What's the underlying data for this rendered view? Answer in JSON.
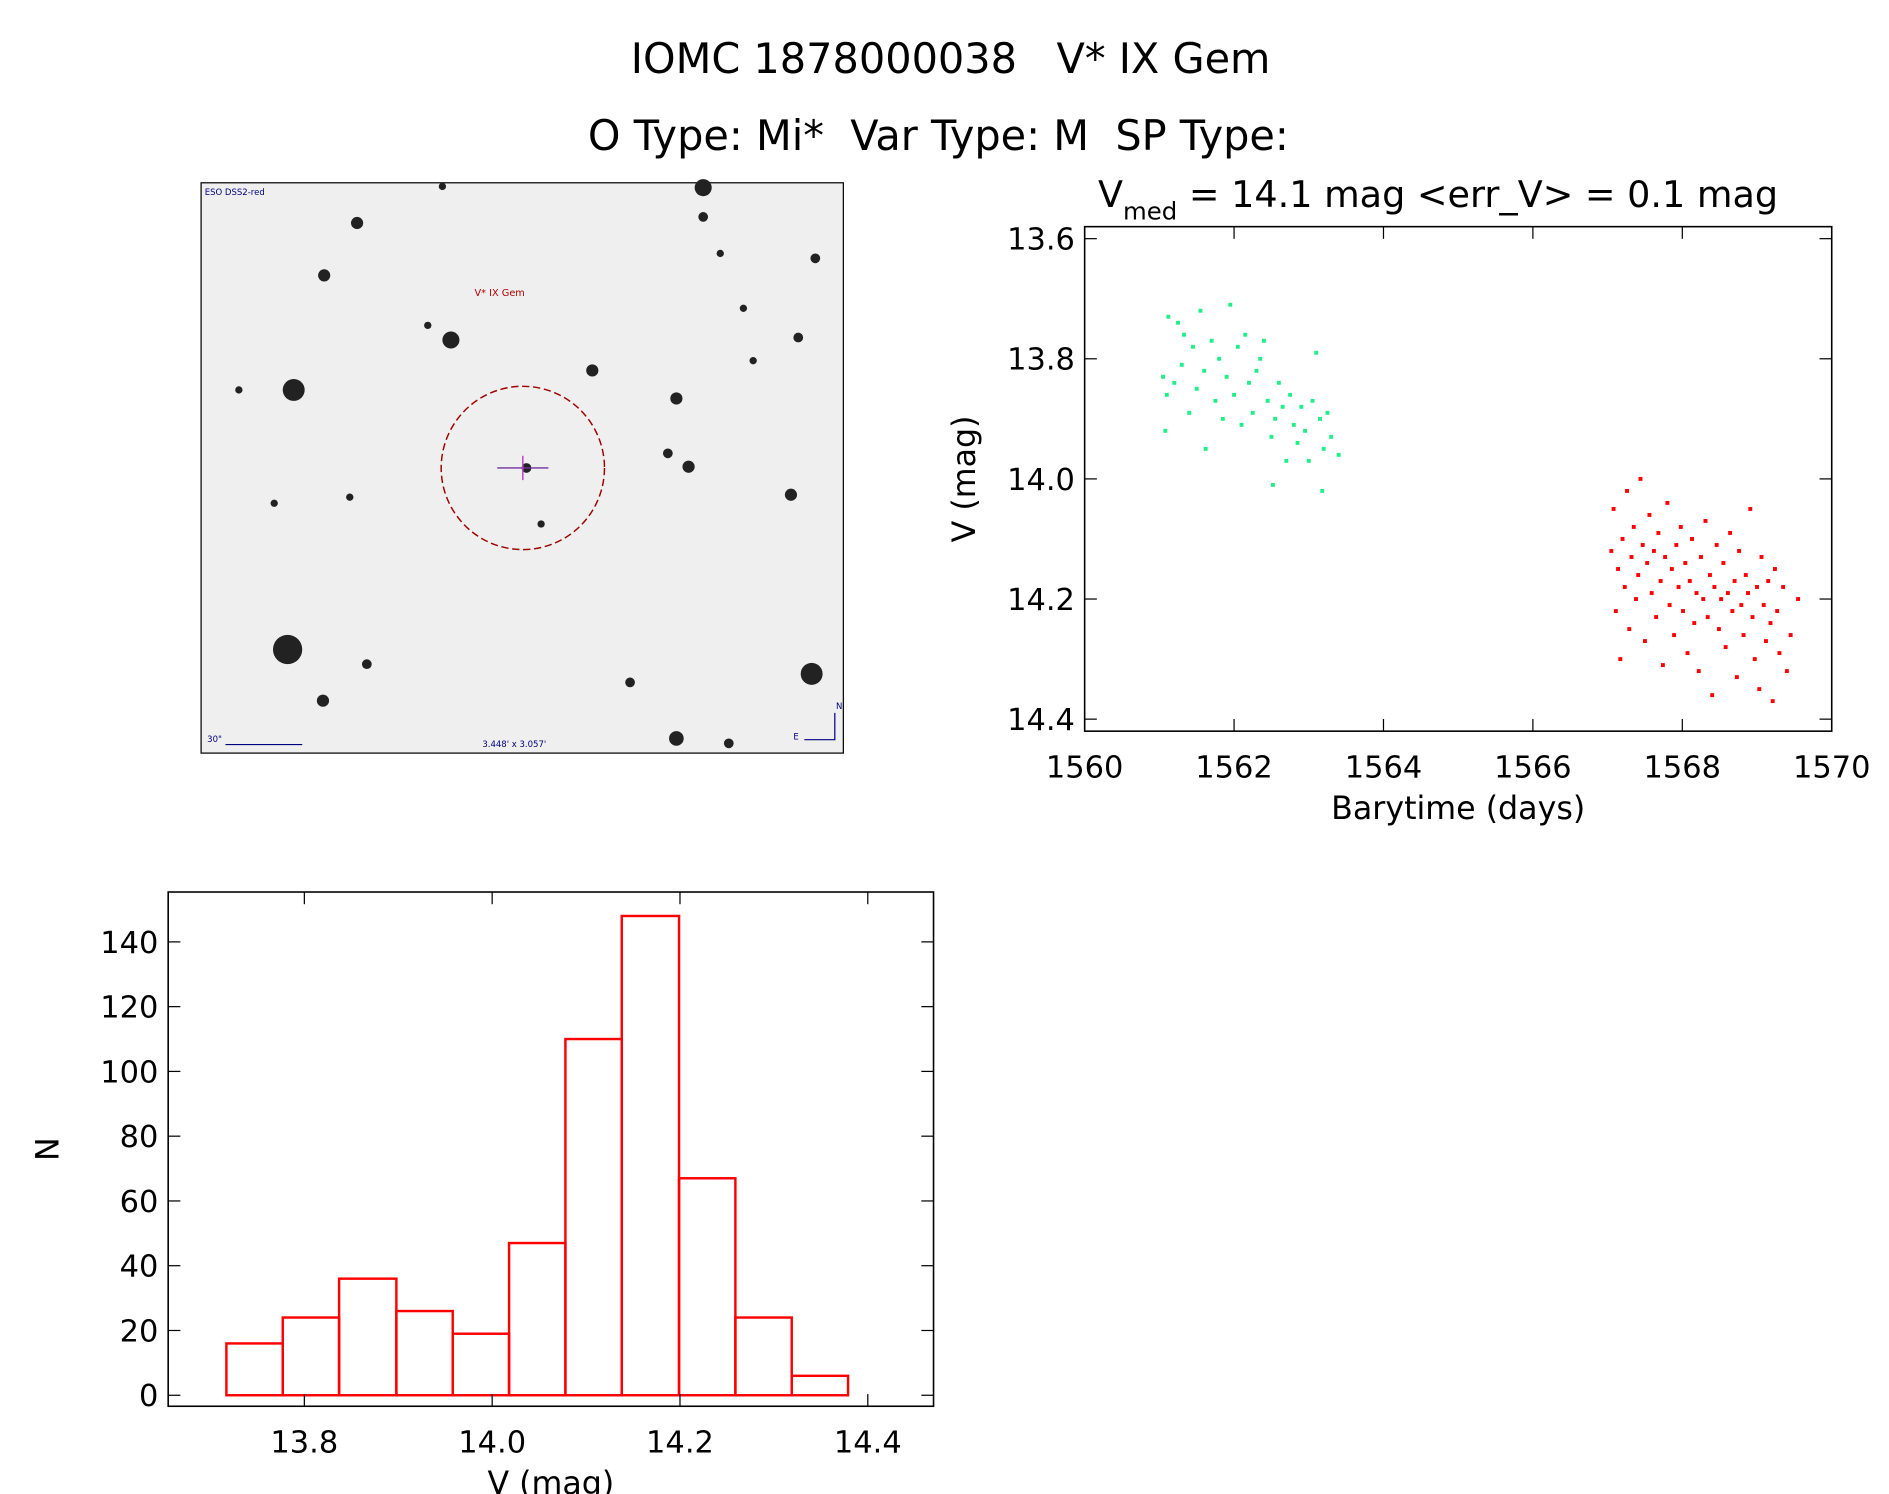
{
  "title": "IOMC 1878000038   V* IX Gem",
  "subtitle": "O Type: Mi*  Var Type: M  SP Type:",
  "image": {
    "survey": "ESO DSS2-red",
    "target": "V* IX Gem",
    "scale": "30\"",
    "size": "3.448' x 3.057'",
    "north": "N",
    "east": "E"
  },
  "chart_data": [
    {
      "type": "scatter",
      "title": {
        "symbol": "V",
        "subscript": "med",
        "text": " = 14.1 mag <err_V> = 0.1 mag"
      },
      "xlabel": "Barytime (days)",
      "ylabel": "V (mag)",
      "xlim": [
        1560,
        1570
      ],
      "xticks": [
        1560,
        1562,
        1564,
        1566,
        1568,
        1570
      ],
      "ylim": [
        14.42,
        13.58
      ],
      "yticks": [
        13.6,
        13.8,
        {
          "value": 14,
          "label": "14.0"
        },
        14.2,
        14.4
      ],
      "series": [
        {
          "color": "#22ee88",
          "x": [
            1561.05,
            1561.08,
            1561.1,
            1561.12,
            1561.2,
            1561.25,
            1561.3,
            1561.33,
            1561.4,
            1561.45,
            1561.5,
            1561.55,
            1561.6,
            1561.62,
            1561.7,
            1561.75,
            1561.8,
            1561.85,
            1561.9,
            1561.95,
            1562.0,
            1562.05,
            1562.1,
            1562.15,
            1562.2,
            1562.25,
            1562.3,
            1562.35,
            1562.4,
            1562.45,
            1562.5,
            1562.52,
            1562.55,
            1562.6,
            1562.65,
            1562.7,
            1562.75,
            1562.8,
            1562.85,
            1562.9,
            1562.95,
            1563.0,
            1563.05,
            1563.1,
            1563.15,
            1563.18,
            1563.2,
            1563.25,
            1563.3,
            1563.4
          ],
          "values": [
            13.83,
            13.92,
            13.86,
            13.73,
            13.84,
            13.74,
            13.81,
            13.76,
            13.89,
            13.78,
            13.85,
            13.72,
            13.82,
            13.95,
            13.77,
            13.87,
            13.8,
            13.9,
            13.83,
            13.71,
            13.86,
            13.78,
            13.91,
            13.76,
            13.84,
            13.89,
            13.82,
            13.8,
            13.77,
            13.87,
            13.93,
            14.01,
            13.9,
            13.84,
            13.88,
            13.97,
            13.86,
            13.91,
            13.94,
            13.88,
            13.92,
            13.97,
            13.87,
            13.79,
            13.9,
            14.02,
            13.95,
            13.89,
            13.93,
            13.96
          ]
        },
        {
          "color": "#ff0000",
          "x": [
            1567.05,
            1567.08,
            1567.11,
            1567.14,
            1567.17,
            1567.2,
            1567.23,
            1567.26,
            1567.29,
            1567.32,
            1567.35,
            1567.38,
            1567.41,
            1567.44,
            1567.47,
            1567.5,
            1567.53,
            1567.56,
            1567.59,
            1567.62,
            1567.65,
            1567.68,
            1567.71,
            1567.74,
            1567.77,
            1567.8,
            1567.83,
            1567.86,
            1567.89,
            1567.92,
            1567.95,
            1567.98,
            1568.01,
            1568.04,
            1568.07,
            1568.1,
            1568.13,
            1568.16,
            1568.19,
            1568.22,
            1568.25,
            1568.28,
            1568.31,
            1568.34,
            1568.37,
            1568.4,
            1568.43,
            1568.46,
            1568.49,
            1568.52,
            1568.55,
            1568.58,
            1568.61,
            1568.64,
            1568.67,
            1568.7,
            1568.73,
            1568.76,
            1568.79,
            1568.82,
            1568.85,
            1568.88,
            1568.91,
            1568.94,
            1568.97,
            1569.0,
            1569.03,
            1569.06,
            1569.09,
            1569.12,
            1569.15,
            1569.18,
            1569.21,
            1569.24,
            1569.27,
            1569.3,
            1569.35,
            1569.4,
            1569.45,
            1569.55
          ],
          "values": [
            14.12,
            14.05,
            14.22,
            14.15,
            14.3,
            14.1,
            14.18,
            14.02,
            14.25,
            14.13,
            14.08,
            14.2,
            14.16,
            14.0,
            14.11,
            14.27,
            14.14,
            14.06,
            14.19,
            14.12,
            14.23,
            14.09,
            14.17,
            14.31,
            14.13,
            14.04,
            14.21,
            14.15,
            14.26,
            14.11,
            14.18,
            14.08,
            14.22,
            14.14,
            14.29,
            14.17,
            14.1,
            14.24,
            14.19,
            14.32,
            14.13,
            14.2,
            14.07,
            14.23,
            14.16,
            14.36,
            14.18,
            14.11,
            14.25,
            14.2,
            14.14,
            14.28,
            14.19,
            14.09,
            14.22,
            14.17,
            14.33,
            14.12,
            14.21,
            14.26,
            14.16,
            14.19,
            14.05,
            14.23,
            14.3,
            14.18,
            14.35,
            14.13,
            14.21,
            14.27,
            14.17,
            14.24,
            14.37,
            14.15,
            14.22,
            14.29,
            14.18,
            14.32,
            14.26,
            14.2
          ]
        }
      ]
    },
    {
      "type": "histogram",
      "xlabel": "V (mag)",
      "ylabel": "N",
      "xlim": [
        13.655,
        14.47
      ],
      "xticks": [
        13.8,
        {
          "value": 14,
          "label": "14.0"
        },
        14.2,
        14.4
      ],
      "ylim": [
        -3.4,
        155.4
      ],
      "yticks": [
        0,
        20,
        40,
        60,
        80,
        100,
        120,
        140
      ],
      "color": "#ff0000",
      "bins": [
        13.717,
        13.777,
        13.837,
        13.898,
        13.958,
        14.018,
        14.078,
        14.138,
        14.199,
        14.259,
        14.319,
        14.379
      ],
      "values": [
        16,
        24,
        36,
        26,
        19,
        47,
        110,
        148,
        67,
        24,
        6
      ]
    }
  ]
}
